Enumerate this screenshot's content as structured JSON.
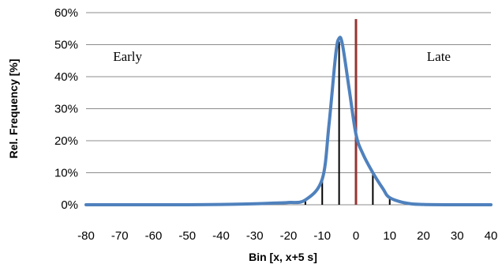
{
  "chart_data": {
    "type": "line",
    "title": "",
    "xlabel": "Bin [x, x+5 s]",
    "ylabel": "Rel. Frequency [%]",
    "xlim": [
      -80,
      40
    ],
    "ylim": [
      0,
      60
    ],
    "x_ticks": [
      "-80",
      "-70",
      "-60",
      "-50",
      "-40",
      "-30",
      "-20",
      "-10",
      "0",
      "10",
      "20",
      "30",
      "40"
    ],
    "y_ticks": [
      "0%",
      "10%",
      "20%",
      "30%",
      "40%",
      "50%",
      "60%"
    ],
    "grid": "horizontal",
    "legend": "none",
    "series": [
      {
        "color": "#4f81bd",
        "style": "smooth line",
        "x": [
          -80,
          -70,
          -60,
          -50,
          -40,
          -35,
          -30,
          -25,
          -20,
          -15,
          -10,
          -8,
          -6,
          -5,
          -4,
          -2,
          0,
          2,
          5,
          8,
          10,
          15,
          20,
          30,
          40
        ],
        "y": [
          0,
          0,
          0,
          0,
          0.1,
          0.2,
          0.3,
          0.5,
          0.7,
          1.5,
          8,
          25,
          47,
          52,
          50,
          36,
          22,
          16,
          10,
          5,
          2.2,
          0.5,
          0.1,
          0,
          0
        ]
      },
      {
        "color": "#000000",
        "style": "vertical bars",
        "x": [
          -15,
          -10,
          -5,
          5,
          10
        ],
        "y": [
          1.5,
          7.5,
          51,
          9.5,
          2.2
        ]
      }
    ],
    "reference_line": {
      "x": 0,
      "color": "#943634",
      "y_top": 58
    },
    "annotations": [
      {
        "text": "Early",
        "x": -72,
        "y": 45
      },
      {
        "text": "Late",
        "x": 21,
        "y": 45
      }
    ]
  }
}
